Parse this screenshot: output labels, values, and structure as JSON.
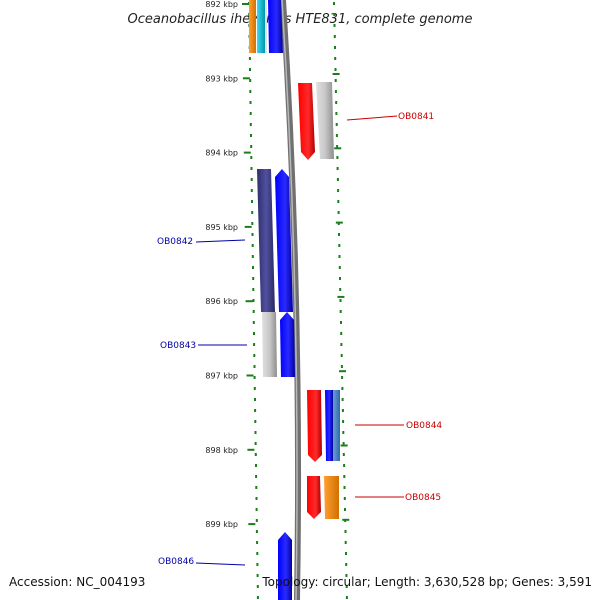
{
  "title": "Oceanobacillus iheyensis HTE831, complete genome",
  "accession": "Accession: NC_004193",
  "topology": "Topology: circular; Length: 3,630,528 bp; Genes: 3,591",
  "ticks": [
    {
      "label": "892 kbp",
      "kbp": 892
    },
    {
      "label": "893 kbp",
      "kbp": 893
    },
    {
      "label": "894 kbp",
      "kbp": 894
    },
    {
      "label": "895 kbp",
      "kbp": 895
    },
    {
      "label": "896 kbp",
      "kbp": 896
    },
    {
      "label": "897 kbp",
      "kbp": 897
    },
    {
      "label": "898 kbp",
      "kbp": 898
    },
    {
      "label": "899 kbp",
      "kbp": 899
    }
  ],
  "gene_labels": [
    {
      "label": "OB0841",
      "side": "right",
      "color": "#cc0000"
    },
    {
      "label": "OB0842",
      "side": "left",
      "color": "#0000aa"
    },
    {
      "label": "OB0843",
      "side": "left",
      "color": "#0000aa"
    },
    {
      "label": "OB0844",
      "side": "right",
      "color": "#cc0000"
    },
    {
      "label": "OB0845",
      "side": "right",
      "color": "#cc0000"
    },
    {
      "label": "OB0846",
      "side": "left",
      "color": "#0000aa"
    }
  ],
  "colors": {
    "backbone": "#808080",
    "dots": "#1a7f1a",
    "red": "#ff0000",
    "blue": "#0000ff",
    "navy": "#3a3a80",
    "gray": "#bdbdbd",
    "orange": "#ff8c00",
    "cyan": "#00bcd4",
    "steel": "#4a86c8"
  }
}
